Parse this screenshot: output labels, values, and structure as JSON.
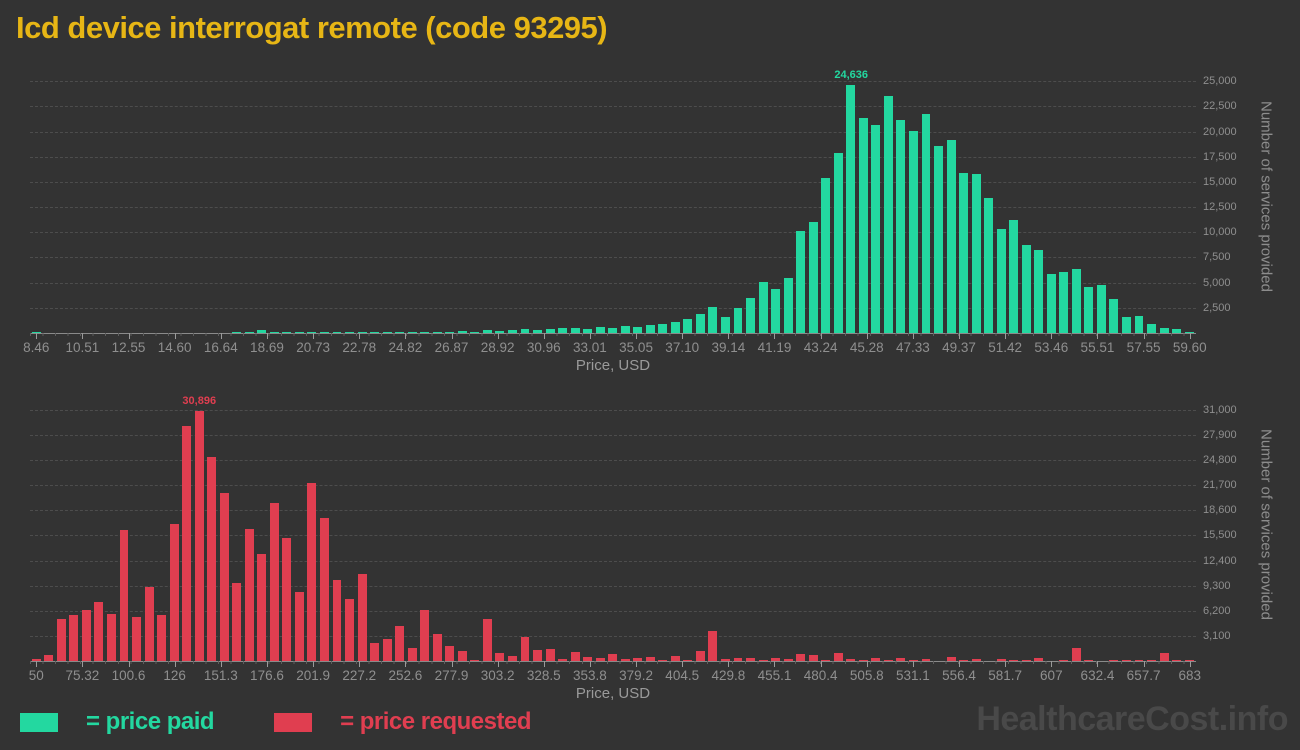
{
  "page": {
    "title": "Icd device interrogat remote (code 93295)",
    "title_color": "#e7b615",
    "background_color": "#333333",
    "watermark": "HealthcareCost.info"
  },
  "legend": {
    "items": [
      {
        "label": "= price paid",
        "swatch_color": "#23d8a0"
      },
      {
        "label": "= price requested",
        "swatch_color": "#e03e50"
      }
    ]
  },
  "chart_data": [
    {
      "type": "bar",
      "series_name": "price paid",
      "color": "#23d8a0",
      "title": "",
      "xlabel": "Price, USD",
      "ylabel": "Number of services provided",
      "grid": "horizontal dashed",
      "legend_position": "bottom-left",
      "x_axis": {
        "min": 8.46,
        "max": 59.6,
        "tick_labels": [
          "8.46",
          "10.51",
          "12.55",
          "14.60",
          "16.64",
          "18.69",
          "20.73",
          "22.78",
          "24.82",
          "26.87",
          "28.92",
          "30.96",
          "33.01",
          "35.05",
          "37.10",
          "39.14",
          "41.19",
          "43.24",
          "45.28",
          "47.33",
          "49.37",
          "51.42",
          "53.46",
          "55.51",
          "57.55",
          "59.60"
        ]
      },
      "y_axis": {
        "min": 0,
        "max_render": 27100,
        "tick_labels": [
          "2,500",
          "5,000",
          "7,500",
          "10,000",
          "12,500",
          "15,000",
          "17,500",
          "20,000",
          "22,500",
          "25,000"
        ]
      },
      "bin_count": 93,
      "values": [
        100,
        0,
        0,
        0,
        0,
        0,
        0,
        0,
        0,
        0,
        0,
        0,
        0,
        0,
        0,
        0,
        80,
        150,
        250,
        120,
        150,
        80,
        100,
        60,
        80,
        100,
        60,
        80,
        100,
        60,
        80,
        100,
        80,
        100,
        200,
        150,
        250,
        200,
        300,
        350,
        300,
        400,
        450,
        500,
        400,
        550,
        500,
        650,
        600,
        800,
        900,
        1100,
        1400,
        1900,
        2550,
        1620,
        2450,
        3440,
        5090,
        4340,
        5430,
        10150,
        11040,
        15350,
        17890,
        24636,
        21300,
        20640,
        23500,
        21130,
        20070,
        21730,
        18550,
        19140,
        15900,
        15740,
        13360,
        10290,
        11210,
        8730,
        8230,
        5850,
        6020,
        6320,
        4530,
        4760,
        3340,
        1560,
        1690,
        890,
        530,
        370,
        130
      ],
      "peak_annotation": {
        "text": "24,636",
        "value": 24636,
        "bin_index": 65
      }
    },
    {
      "type": "bar",
      "series_name": "price requested",
      "color": "#e03e50",
      "title": "",
      "xlabel": "Price, USD",
      "ylabel": "Number of services provided",
      "grid": "horizontal dashed",
      "legend_position": "bottom-left",
      "x_axis": {
        "min": 50,
        "max": 683,
        "tick_labels": [
          "50",
          "75.32",
          "100.6",
          "126",
          "151.3",
          "176.6",
          "201.9",
          "227.2",
          "252.6",
          "277.9",
          "303.2",
          "328.5",
          "353.8",
          "379.2",
          "404.5",
          "429.8",
          "455.1",
          "480.4",
          "505.8",
          "531.1",
          "556.4",
          "581.7",
          "607",
          "632.4",
          "657.7",
          "683"
        ]
      },
      "y_axis": {
        "min": 0,
        "max_render": 33700,
        "tick_labels": [
          "3,100",
          "6,200",
          "9,300",
          "12,400",
          "15,500",
          "18,600",
          "21,700",
          "24,800",
          "27,900",
          "31,000"
        ]
      },
      "bin_count": 93,
      "values": [
        200,
        740,
        5125,
        5740,
        6315,
        7335,
        5825,
        16220,
        5490,
        9095,
        5740,
        16960,
        29050,
        30896,
        25160,
        20770,
        9635,
        16310,
        13235,
        19465,
        15165,
        8530,
        21925,
        17620,
        9955,
        7705,
        10780,
        2200,
        2665,
        4305,
        1560,
        6355,
        3360,
        1845,
        1230,
        165,
        5205,
        985,
        575,
        2950,
        1395,
        1475,
        290,
        1105,
        450,
        370,
        900,
        250,
        330,
        530,
        120,
        650,
        80,
        1270,
        3730,
        250,
        410,
        370,
        120,
        410,
        200,
        900,
        700,
        100,
        940,
        290,
        120,
        330,
        40,
        370,
        80,
        250,
        0,
        530,
        80,
        200,
        0,
        250,
        80,
        160,
        330,
        0,
        120,
        1650,
        120,
        0,
        80,
        120,
        80,
        120,
        950,
        80,
        120
      ],
      "peak_annotation": {
        "text": "30,896",
        "value": 30896,
        "bin_index": 13
      }
    }
  ]
}
